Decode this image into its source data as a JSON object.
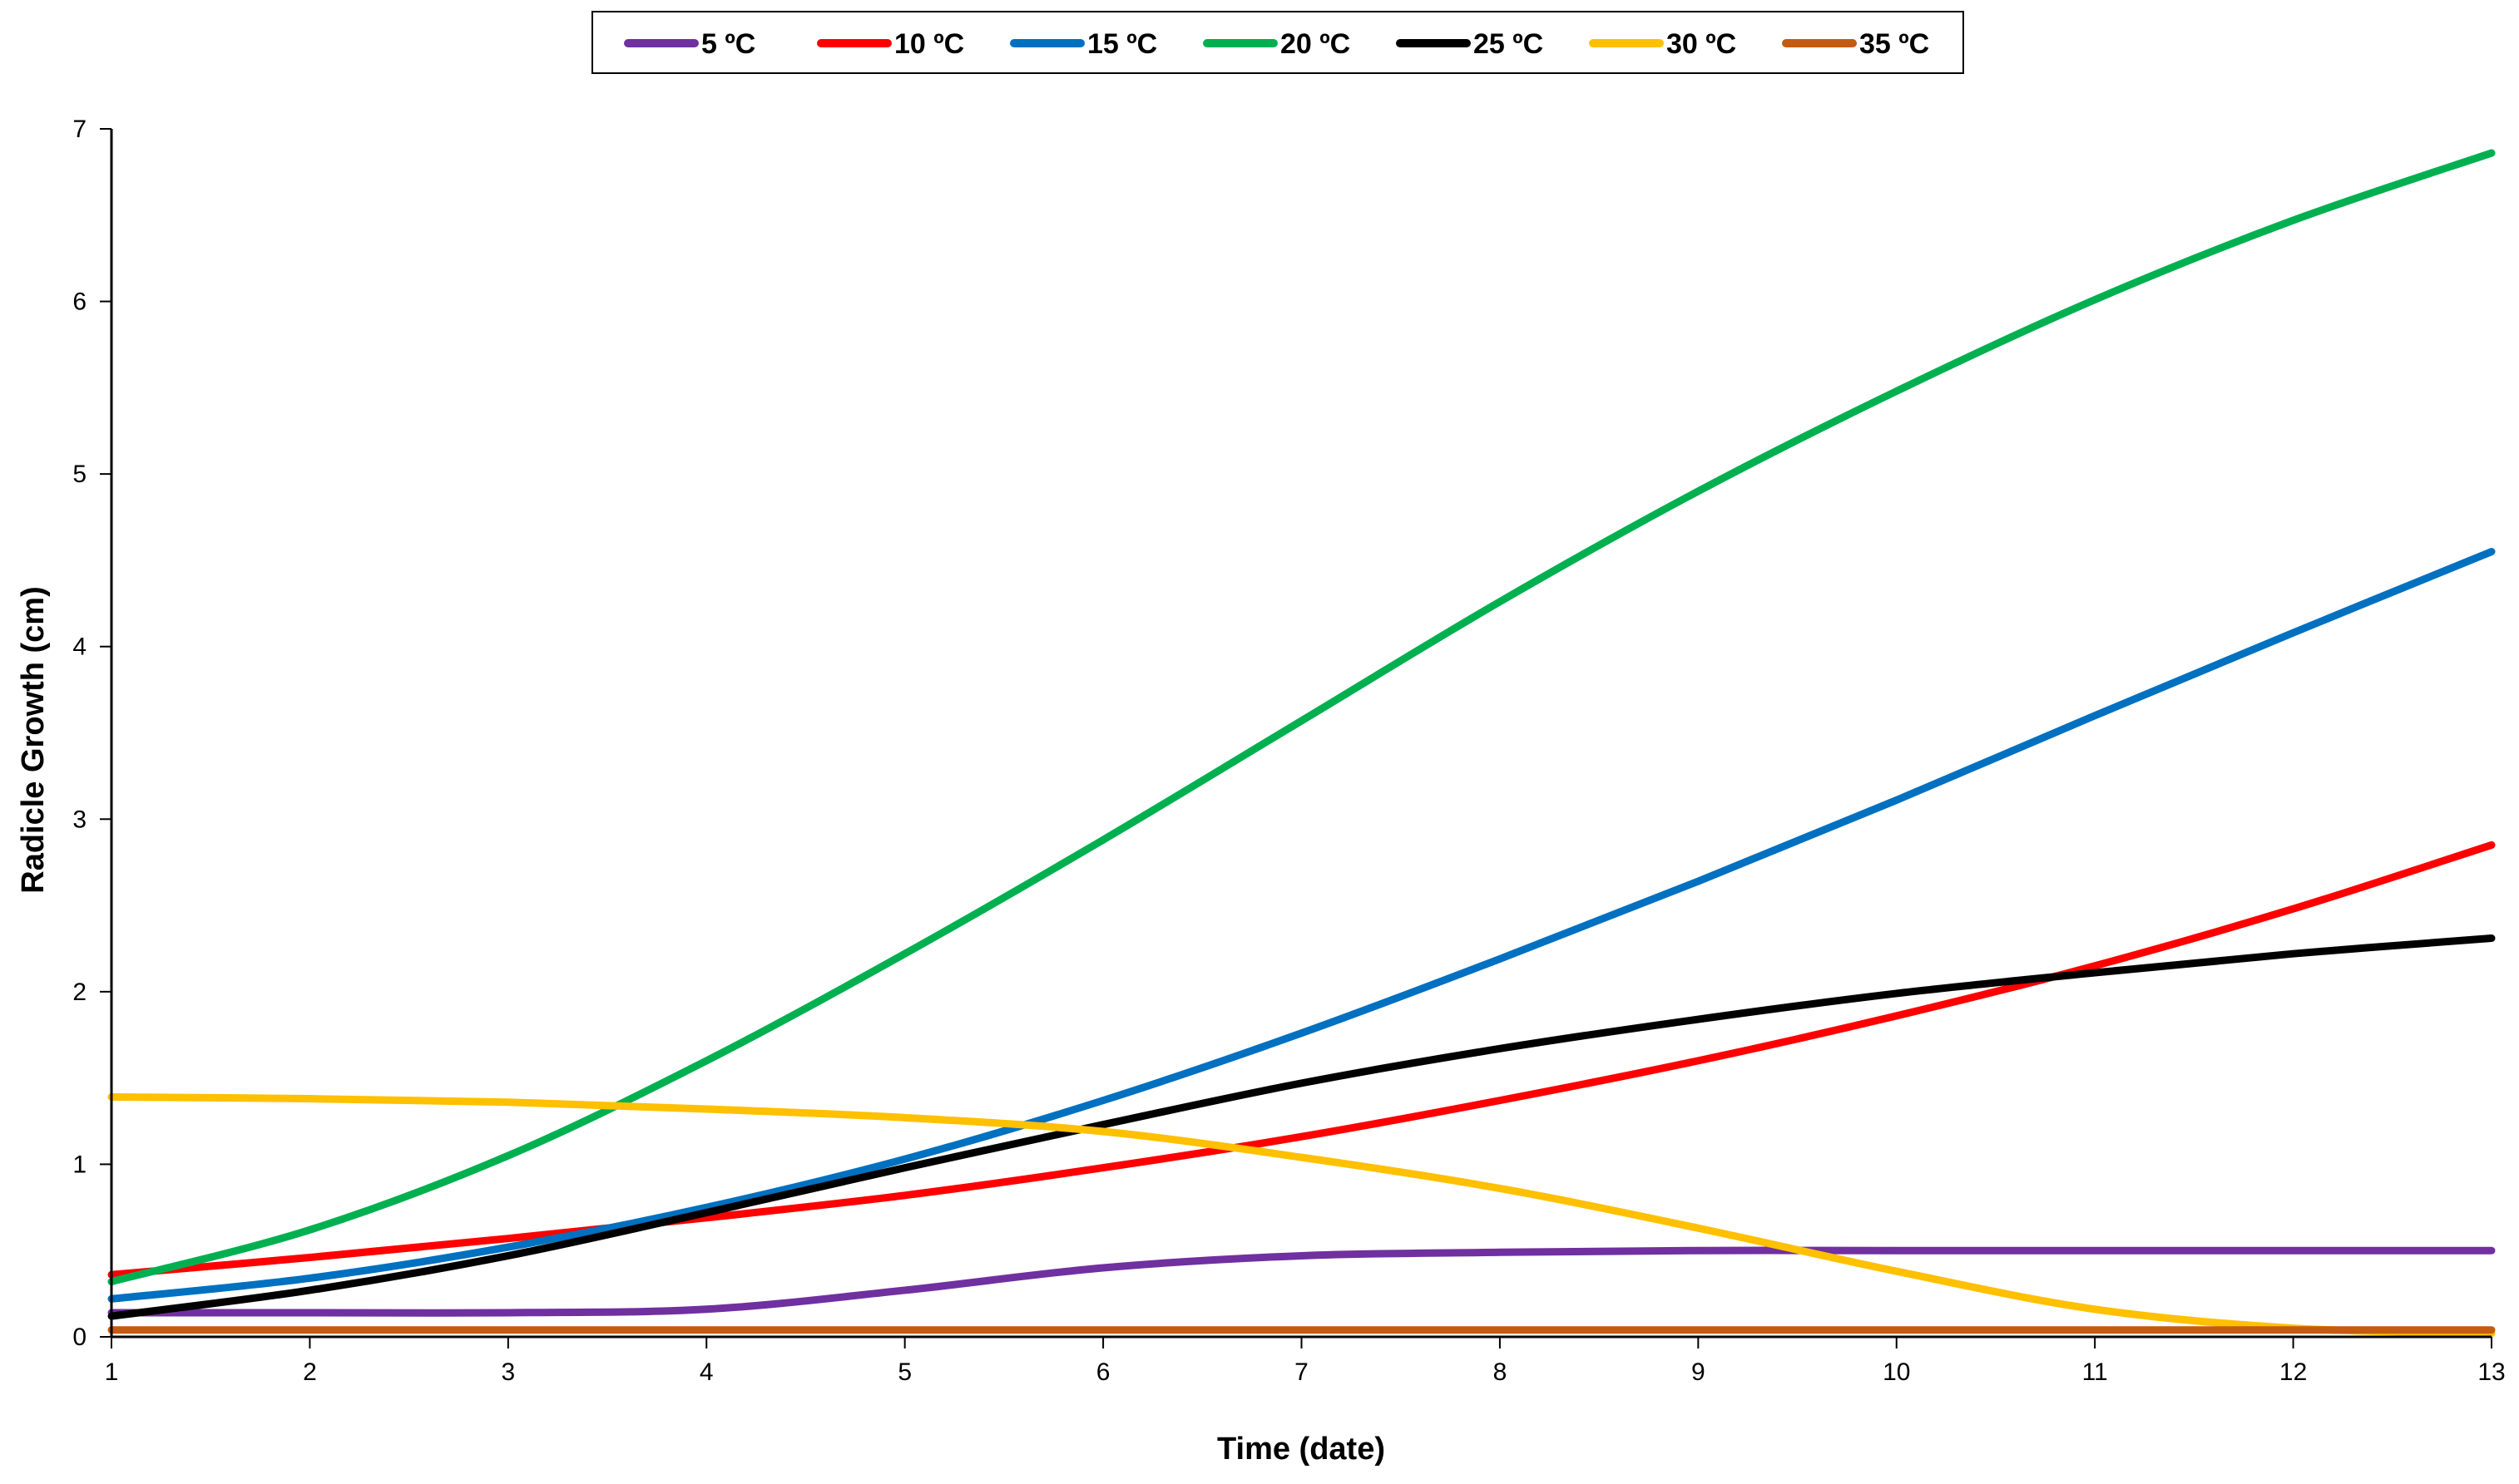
{
  "chart_data": {
    "type": "line",
    "title": "",
    "xlabel": "Time (date)",
    "ylabel": "Radicle Growth (cm)",
    "xlim": [
      1,
      13
    ],
    "ylim": [
      0,
      7
    ],
    "x_ticks": [
      "1",
      "2",
      "3",
      "4",
      "5",
      "6",
      "7",
      "8",
      "9",
      "10",
      "11",
      "12",
      "13"
    ],
    "y_ticks": [
      "0",
      "1",
      "2",
      "3",
      "4",
      "5",
      "6",
      "7"
    ],
    "grid": false,
    "legend_position": "top-center",
    "x": [
      1,
      2,
      3,
      4,
      5,
      6,
      7,
      8,
      9,
      10,
      11,
      12,
      13
    ],
    "series": [
      {
        "name": "5 ºC",
        "color": "#7030a0",
        "values": [
          0.14,
          0.14,
          0.14,
          0.16,
          0.27,
          0.4,
          0.47,
          0.49,
          0.5,
          0.5,
          0.5,
          0.5,
          0.5
        ]
      },
      {
        "name": "10 ºC",
        "color": "#ff0000",
        "values": [
          0.36,
          0.46,
          0.57,
          0.69,
          0.82,
          0.98,
          1.16,
          1.37,
          1.6,
          1.86,
          2.15,
          2.48,
          2.85
        ]
      },
      {
        "name": "15 ºC",
        "color": "#0070c0",
        "values": [
          0.22,
          0.34,
          0.52,
          0.75,
          1.03,
          1.37,
          1.76,
          2.19,
          2.64,
          3.11,
          3.6,
          4.08,
          4.55
        ]
      },
      {
        "name": "20 ºC",
        "color": "#00b050",
        "values": [
          0.32,
          0.62,
          1.05,
          1.6,
          2.22,
          2.88,
          3.57,
          4.26,
          4.9,
          5.48,
          6.01,
          6.47,
          6.86
        ]
      },
      {
        "name": "25 ºC",
        "color": "#000000",
        "values": [
          0.12,
          0.27,
          0.47,
          0.72,
          0.98,
          1.23,
          1.47,
          1.67,
          1.84,
          1.99,
          2.11,
          2.22,
          2.31
        ]
      },
      {
        "name": "30 ºC",
        "color": "#ffc000",
        "values": [
          1.39,
          1.38,
          1.36,
          1.32,
          1.27,
          1.19,
          1.04,
          0.86,
          0.63,
          0.38,
          0.16,
          0.05,
          0.02
        ]
      },
      {
        "name": "35 ºC",
        "color": "#c55a11",
        "values": [
          0.04,
          0.04,
          0.04,
          0.04,
          0.04,
          0.04,
          0.04,
          0.04,
          0.04,
          0.04,
          0.04,
          0.04,
          0.04
        ]
      }
    ]
  }
}
